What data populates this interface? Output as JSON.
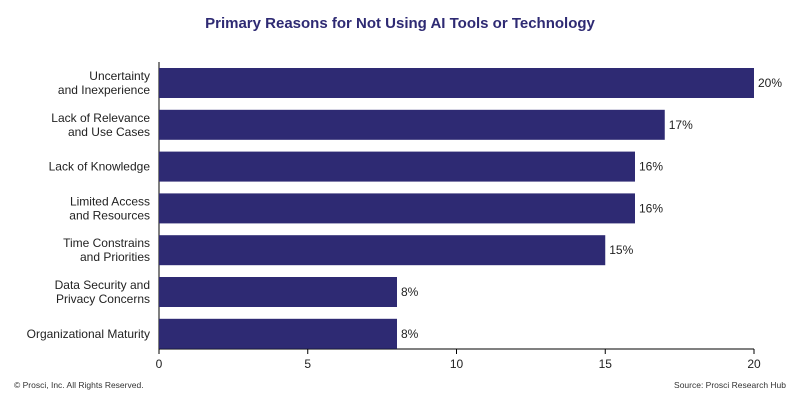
{
  "chart_data": {
    "type": "bar",
    "orientation": "horizontal",
    "title": "Primary Reasons for Not Using AI Tools or Technology",
    "categories": [
      [
        "Uncertainty",
        "and Inexperience"
      ],
      [
        "Lack of Relevance",
        "and Use Cases"
      ],
      [
        "Lack of Knowledge"
      ],
      [
        "Limited Access",
        "and Resources"
      ],
      [
        "Time Constrains",
        "and Priorities"
      ],
      [
        "Data Security and",
        "Privacy Concerns"
      ],
      [
        "Organizational Maturity"
      ]
    ],
    "values": [
      20,
      17,
      16,
      16,
      15,
      8,
      8
    ],
    "value_labels": [
      "20%",
      "17%",
      "16%",
      "16%",
      "15%",
      "8%",
      "8%"
    ],
    "xlim": [
      0,
      20
    ],
    "xticks": [
      "0",
      "5",
      "10",
      "15",
      "20"
    ],
    "xlabel": "",
    "ylabel": "",
    "grid": false,
    "bar_color": "#2e2a73"
  },
  "footer": {
    "copyright": "© Prosci, Inc. All Rights Reserved.",
    "source": "Source: Prosci Research Hub"
  }
}
